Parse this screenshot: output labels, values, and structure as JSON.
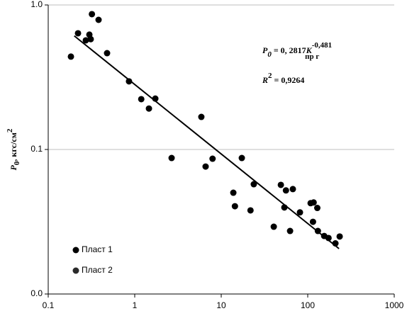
{
  "chart_data": {
    "type": "scatter",
    "y_label": {
      "symbol": "P",
      "subscript": "0",
      "unit": ", кгс/см",
      "superscript": "2"
    },
    "annotations": [
      {
        "symbol": "P",
        "subscript": "0",
        "text": " = 0, 2817",
        "var": "K",
        "superscript": "-0,481",
        "var_subscript": "пр г"
      },
      {
        "symbol": "R",
        "superscript": "2",
        "text": " = 0,9264"
      }
    ],
    "log_x": true,
    "log_y": true,
    "grid": true,
    "legend": "lower left",
    "xlim": [
      0.1,
      1000
    ],
    "xticks": [
      0.1,
      1,
      10,
      100,
      1000
    ],
    "ylim": [
      0.01,
      1
    ],
    "yticks": [
      {
        "value": 0.01,
        "label": "0.0"
      },
      {
        "value": 0.1,
        "label": "0.1"
      },
      {
        "value": 1,
        "label": "1.0"
      }
    ],
    "series": [
      {
        "name": "Пласт 1",
        "color": "#000000",
        "x": [
          0.183,
          0.221,
          0.272,
          0.299,
          0.31,
          0.32,
          0.382,
          0.479,
          0.859,
          1.19,
          1.46,
          1.73,
          2.67,
          5.89,
          6.6,
          7.94,
          17.3,
          13.8,
          14.4,
          23.8,
          21.8,
          40.5,
          48.9,
          53.7,
          56,
          67.3,
          62.5,
          81.3,
          108,
          117,
          115,
          129,
          131,
          155,
          174,
          209,
          234
        ],
        "values": [
          0.439,
          0.637,
          0.569,
          0.623,
          0.58,
          0.864,
          0.789,
          0.464,
          0.296,
          0.223,
          0.192,
          0.225,
          0.0873,
          0.168,
          0.0762,
          0.0863,
          0.0873,
          0.0502,
          0.0405,
          0.0575,
          0.0379,
          0.0292,
          0.0569,
          0.0397,
          0.0521,
          0.0532,
          0.0273,
          0.0367,
          0.0425,
          0.043,
          0.0316,
          0.0394,
          0.0273,
          0.0252,
          0.0244,
          0.0224,
          0.025
        ]
      },
      {
        "name": "Пласт 2",
        "color": "#2a2a2a",
        "x": [],
        "values": []
      }
    ],
    "trendline": {
      "color": "#000000",
      "x": [
        0.2,
        230
      ],
      "values": [
        0.611,
        0.0206
      ]
    }
  }
}
